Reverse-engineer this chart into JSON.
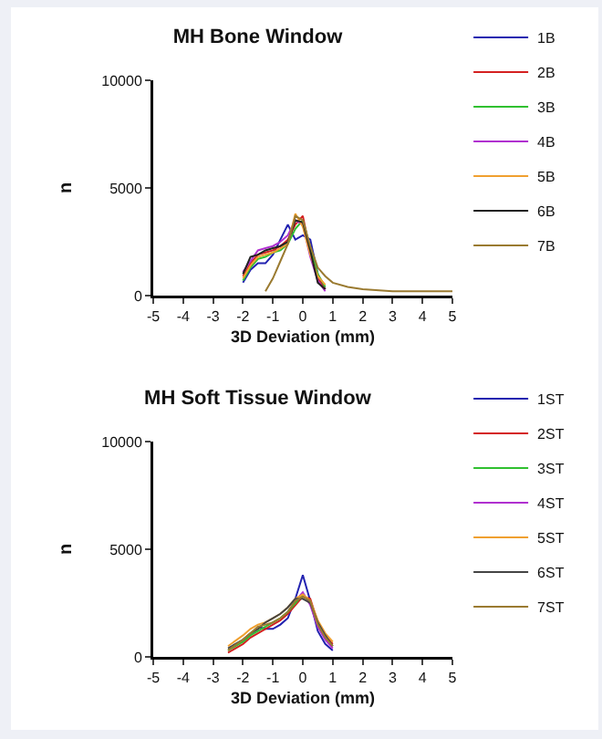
{
  "chart_data": [
    {
      "type": "line",
      "title": "MH Bone Window",
      "xlabel": "3D Deviation (mm)",
      "ylabel": "n",
      "x": [
        -2,
        -1.75,
        -1.5,
        -1.25,
        -1,
        -0.75,
        -0.5,
        -0.25,
        0,
        0.25,
        0.5,
        0.75
      ],
      "xlim": [
        -5,
        5
      ],
      "xticks": [
        -5,
        -4,
        -3,
        -2,
        -1,
        0,
        1,
        2,
        3,
        4,
        5
      ],
      "ylim": [
        0,
        10000
      ],
      "yticks": [
        0,
        5000,
        10000
      ],
      "grid": false,
      "legend": "right",
      "marker": "none",
      "line_style": "solid",
      "series": [
        {
          "name": "1B",
          "color": "#2222b0",
          "values": [
            600,
            1200,
            1500,
            1500,
            1900,
            2600,
            3300,
            2600,
            2800,
            2600,
            1000,
            300
          ]
        },
        {
          "name": "2B",
          "color": "#d42020",
          "values": [
            900,
            1500,
            1900,
            2000,
            2100,
            2300,
            2600,
            3300,
            3700,
            2000,
            800,
            300
          ]
        },
        {
          "name": "3B",
          "color": "#30c030",
          "values": [
            700,
            1300,
            1700,
            1800,
            2000,
            2100,
            2400,
            3100,
            3500,
            2200,
            1000,
            400
          ]
        },
        {
          "name": "4B",
          "color": "#b030d0",
          "values": [
            1100,
            1600,
            2100,
            2200,
            2300,
            2500,
            2800,
            3500,
            3300,
            1800,
            700,
            200
          ]
        },
        {
          "name": "5B",
          "color": "#f0a030",
          "values": [
            800,
            1400,
            1800,
            1900,
            2000,
            2200,
            2400,
            3800,
            3200,
            1900,
            900,
            500
          ]
        },
        {
          "name": "6B",
          "color": "#222222",
          "values": [
            1000,
            1800,
            1900,
            2100,
            2200,
            2300,
            2500,
            3500,
            3400,
            2100,
            600,
            300
          ]
        },
        {
          "name": "7B",
          "color": "#9a7a30",
          "x": [
            -1.25,
            -1,
            -0.75,
            -0.5,
            -0.25,
            0,
            0.25,
            0.5,
            0.75,
            1,
            1.5,
            2,
            3,
            4,
            5
          ],
          "values": [
            200,
            800,
            1600,
            2400,
            3700,
            3500,
            2300,
            1300,
            900,
            600,
            400,
            300,
            200,
            200,
            200
          ]
        }
      ]
    },
    {
      "type": "line",
      "title": "MH Soft Tissue Window",
      "xlabel": "3D Deviation (mm)",
      "ylabel": "n",
      "x": [
        -2.5,
        -2,
        -1.75,
        -1.5,
        -1.25,
        -1,
        -0.75,
        -0.5,
        -0.25,
        0,
        0.25,
        0.5,
        0.75,
        1
      ],
      "xlim": [
        -5,
        5
      ],
      "xticks": [
        -5,
        -4,
        -3,
        -2,
        -1,
        0,
        1,
        2,
        3,
        4,
        5
      ],
      "ylim": [
        0,
        10000
      ],
      "yticks": [
        0,
        5000,
        10000
      ],
      "grid": false,
      "legend": "right",
      "marker": "none",
      "line_style": "solid",
      "series": [
        {
          "name": "1ST",
          "color": "#2222b0",
          "values": [
            null,
            null,
            null,
            1400,
            1300,
            1300,
            1500,
            1800,
            2700,
            3800,
            2600,
            1200,
            600,
            300
          ]
        },
        {
          "name": "2ST",
          "color": "#d42020",
          "values": [
            200,
            600,
            900,
            1100,
            1300,
            1500,
            1700,
            2000,
            2400,
            2800,
            2700,
            1600,
            1000,
            600
          ]
        },
        {
          "name": "3ST",
          "color": "#30c030",
          "values": [
            300,
            700,
            1000,
            1200,
            1400,
            1600,
            1800,
            2100,
            2500,
            2900,
            2500,
            null,
            null,
            null
          ]
        },
        {
          "name": "4ST",
          "color": "#b030d0",
          "values": [
            null,
            null,
            null,
            null,
            null,
            null,
            null,
            null,
            2600,
            3000,
            2400,
            1400,
            800,
            400
          ]
        },
        {
          "name": "5ST",
          "color": "#f0a030",
          "values": [
            500,
            1000,
            1300,
            1500,
            1600,
            1800,
            2000,
            2300,
            2700,
            2900,
            2600,
            1700,
            1100,
            700
          ]
        },
        {
          "name": "6ST",
          "color": "#444444",
          "values": [
            400,
            800,
            1100,
            1300,
            1600,
            1800,
            2000,
            2300,
            2700,
            2700,
            2500,
            1600,
            1000,
            500
          ]
        },
        {
          "name": "7ST",
          "color": "#9a7a30",
          "values": [
            300,
            800,
            1100,
            1400,
            1500,
            1600,
            1800,
            2100,
            2600,
            2800,
            2600,
            1500,
            900,
            500
          ]
        }
      ]
    }
  ]
}
